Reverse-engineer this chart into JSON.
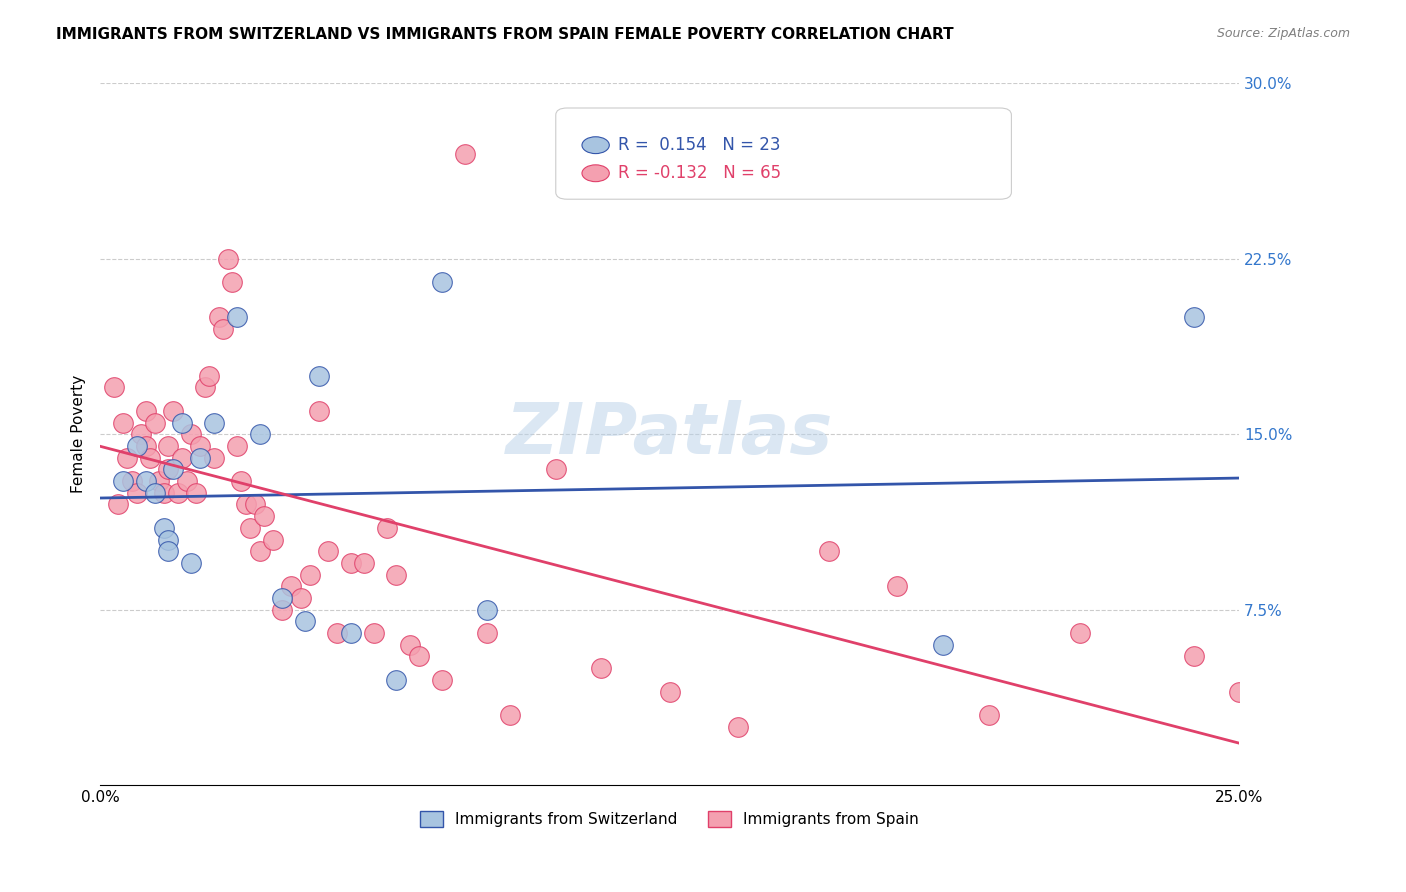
{
  "title": "IMMIGRANTS FROM SWITZERLAND VS IMMIGRANTS FROM SPAIN FEMALE POVERTY CORRELATION CHART",
  "source": "Source: ZipAtlas.com",
  "xlabel": "",
  "ylabel": "Female Poverty",
  "xlim": [
    0,
    0.25
  ],
  "ylim": [
    0,
    0.3
  ],
  "xticks": [
    0,
    0.05,
    0.1,
    0.15,
    0.2,
    0.25
  ],
  "xticklabels": [
    "0.0%",
    "",
    "",
    "",
    "",
    "25.0%"
  ],
  "yticks_right": [
    0.075,
    0.15,
    0.225,
    0.3
  ],
  "yticks_right_labels": [
    "7.5%",
    "15.0%",
    "22.5%",
    "30.0%"
  ],
  "r_switzerland": 0.154,
  "n_switzerland": 23,
  "r_spain": -0.132,
  "n_spain": 65,
  "color_switzerland": "#a8c4e0",
  "color_spain": "#f4a0b0",
  "color_line_switzerland": "#3355aa",
  "color_line_spain": "#e0406a",
  "watermark": "ZIPatlas",
  "switzerland_x": [
    0.005,
    0.008,
    0.01,
    0.012,
    0.014,
    0.015,
    0.015,
    0.016,
    0.018,
    0.02,
    0.022,
    0.025,
    0.03,
    0.035,
    0.04,
    0.045,
    0.048,
    0.055,
    0.065,
    0.075,
    0.085,
    0.185,
    0.24
  ],
  "switzerland_y": [
    0.13,
    0.145,
    0.13,
    0.125,
    0.11,
    0.105,
    0.1,
    0.135,
    0.155,
    0.095,
    0.14,
    0.155,
    0.2,
    0.15,
    0.08,
    0.07,
    0.175,
    0.065,
    0.045,
    0.215,
    0.075,
    0.06,
    0.2
  ],
  "spain_x": [
    0.003,
    0.004,
    0.005,
    0.006,
    0.007,
    0.008,
    0.009,
    0.01,
    0.01,
    0.011,
    0.012,
    0.013,
    0.014,
    0.015,
    0.015,
    0.016,
    0.017,
    0.018,
    0.019,
    0.02,
    0.021,
    0.022,
    0.023,
    0.024,
    0.025,
    0.026,
    0.027,
    0.028,
    0.029,
    0.03,
    0.031,
    0.032,
    0.033,
    0.034,
    0.035,
    0.036,
    0.038,
    0.04,
    0.042,
    0.044,
    0.046,
    0.048,
    0.05,
    0.052,
    0.055,
    0.058,
    0.06,
    0.063,
    0.065,
    0.068,
    0.07,
    0.075,
    0.08,
    0.085,
    0.09,
    0.1,
    0.11,
    0.125,
    0.14,
    0.16,
    0.175,
    0.195,
    0.215,
    0.24,
    0.25
  ],
  "spain_y": [
    0.17,
    0.12,
    0.155,
    0.14,
    0.13,
    0.125,
    0.15,
    0.16,
    0.145,
    0.14,
    0.155,
    0.13,
    0.125,
    0.145,
    0.135,
    0.16,
    0.125,
    0.14,
    0.13,
    0.15,
    0.125,
    0.145,
    0.17,
    0.175,
    0.14,
    0.2,
    0.195,
    0.225,
    0.215,
    0.145,
    0.13,
    0.12,
    0.11,
    0.12,
    0.1,
    0.115,
    0.105,
    0.075,
    0.085,
    0.08,
    0.09,
    0.16,
    0.1,
    0.065,
    0.095,
    0.095,
    0.065,
    0.11,
    0.09,
    0.06,
    0.055,
    0.045,
    0.27,
    0.065,
    0.03,
    0.135,
    0.05,
    0.04,
    0.025,
    0.1,
    0.085,
    0.03,
    0.065,
    0.055,
    0.04
  ]
}
